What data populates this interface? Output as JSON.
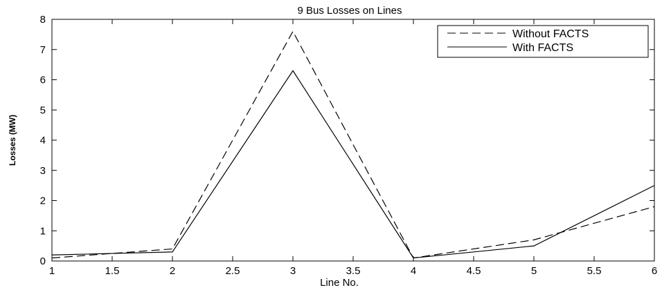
{
  "chart_data": {
    "type": "line",
    "title": "9 Bus Losses on Lines",
    "xlabel": "Line No.",
    "ylabel": "Losses (MW)",
    "xlim": [
      1,
      6
    ],
    "ylim": [
      0,
      8
    ],
    "xticks": [
      1,
      1.5,
      2,
      2.5,
      3,
      3.5,
      4,
      4.5,
      5,
      5.5,
      6
    ],
    "yticks": [
      0,
      1,
      2,
      3,
      4,
      5,
      6,
      7,
      8
    ],
    "x": [
      1,
      2,
      3,
      4,
      5,
      6
    ],
    "series": [
      {
        "name": "Without FACTS",
        "values": [
          0.1,
          0.4,
          7.6,
          0.1,
          0.7,
          1.8
        ],
        "style": "dashed",
        "color": "#000000"
      },
      {
        "name": "With FACTS",
        "values": [
          0.2,
          0.3,
          6.3,
          0.1,
          0.5,
          2.5
        ],
        "style": "solid",
        "color": "#000000"
      }
    ],
    "grid": false,
    "legend_position": "top-right"
  }
}
